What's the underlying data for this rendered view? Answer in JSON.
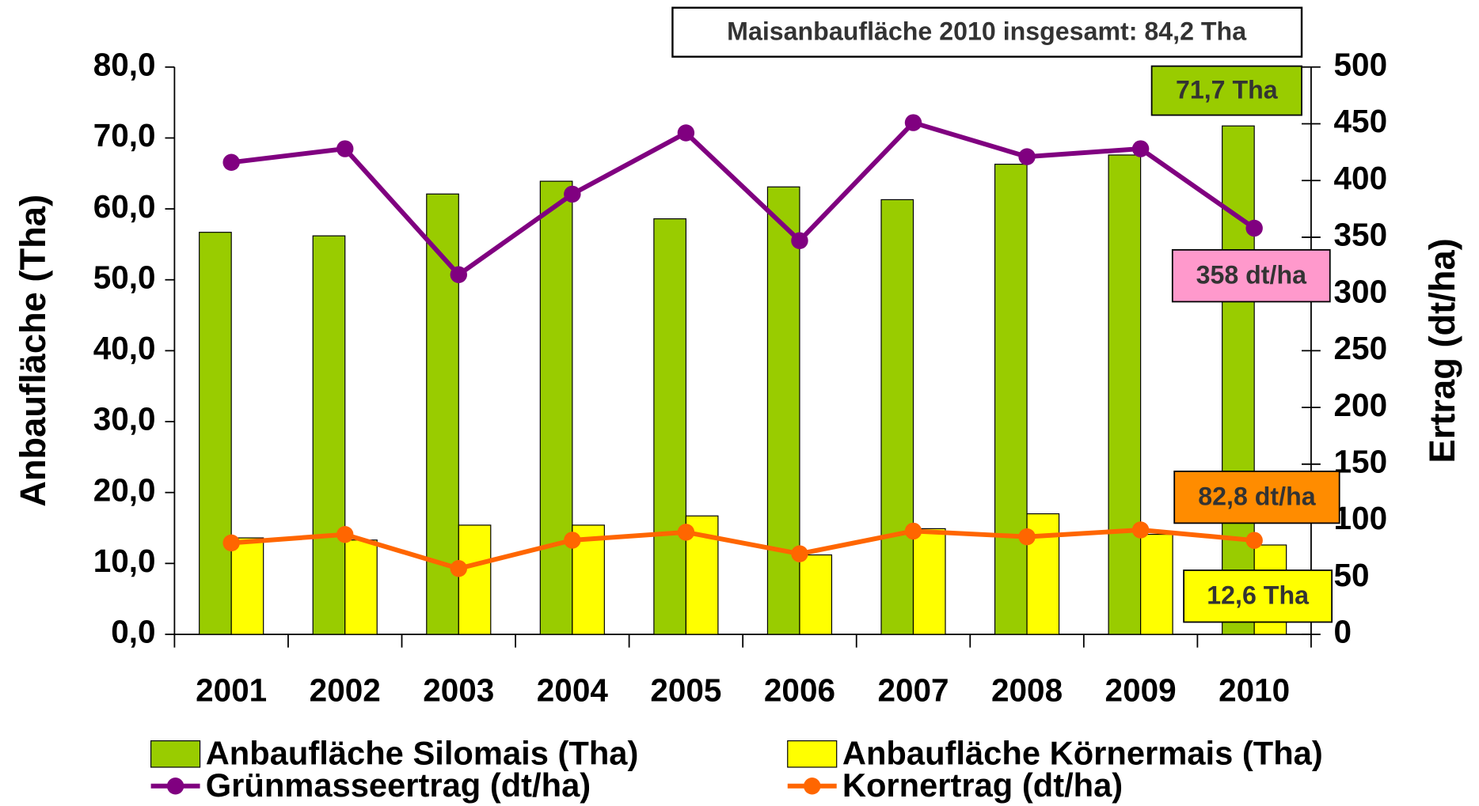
{
  "chart_data": {
    "type": "bar",
    "annotation": "Maisanbaufläche 2010 insgesamt: 84,2 Tha",
    "ylabel": "Anbaufläche (Tha)",
    "y2label": "Ertrag (dt/ha)",
    "categories": [
      "2001",
      "2002",
      "2003",
      "2004",
      "2005",
      "2006",
      "2007",
      "2008",
      "2009",
      "2010"
    ],
    "ylim": [
      0,
      80
    ],
    "yticks": [
      {
        "value": 0,
        "label": "0,0"
      },
      {
        "value": 10,
        "label": "10,0"
      },
      {
        "value": 20,
        "label": "20,0"
      },
      {
        "value": 30,
        "label": "30,0"
      },
      {
        "value": 40,
        "label": "40,0"
      },
      {
        "value": 50,
        "label": "50,0"
      },
      {
        "value": 60,
        "label": "60,0"
      },
      {
        "value": 70,
        "label": "70,0"
      },
      {
        "value": 80,
        "label": "80,0"
      }
    ],
    "y2lim": [
      0,
      500
    ],
    "y2ticks": [
      0,
      50,
      100,
      150,
      200,
      250,
      300,
      350,
      400,
      450,
      500
    ],
    "series": [
      {
        "name": "Anbaufläche Silomais (Tha)",
        "type": "bar",
        "color": "#99cc00",
        "values": [
          56.7,
          56.2,
          62.1,
          63.9,
          58.6,
          63.1,
          61.3,
          66.3,
          67.6,
          71.7
        ],
        "value_labels": [
          null,
          null,
          null,
          null,
          null,
          null,
          null,
          null,
          null,
          "71,7 Tha"
        ],
        "label_color": "#99cc00"
      },
      {
        "name": "Anbaufläche Körnermais (Tha)",
        "type": "bar",
        "color": "#ffff00",
        "values": [
          13.6,
          13.3,
          15.4,
          15.4,
          16.7,
          11.2,
          14.9,
          17.0,
          14.1,
          12.6
        ],
        "value_labels": [
          null,
          null,
          null,
          null,
          null,
          null,
          null,
          null,
          null,
          "12,6 Tha"
        ],
        "label_color": "#ffff00"
      },
      {
        "name": "Grünmasseertrag (dt/ha)",
        "type": "line",
        "axis": "y2",
        "color": "#800080",
        "values": [
          416,
          428,
          317,
          388,
          442,
          347,
          451,
          421,
          428,
          358
        ],
        "value_labels": [
          null,
          null,
          null,
          null,
          null,
          null,
          null,
          null,
          null,
          "358 dt/ha"
        ],
        "label_color": "#ff99cc"
      },
      {
        "name": "Kornertrag (dt/ha)",
        "type": "line",
        "axis": "y2",
        "color": "#ff6600",
        "values": [
          80.6,
          88,
          58,
          83,
          90,
          71,
          91,
          86,
          92,
          82.8
        ],
        "value_labels": [
          null,
          null,
          null,
          null,
          null,
          null,
          null,
          null,
          null,
          "82,8 dt/ha"
        ],
        "label_color": "#ff8c00"
      }
    ]
  }
}
